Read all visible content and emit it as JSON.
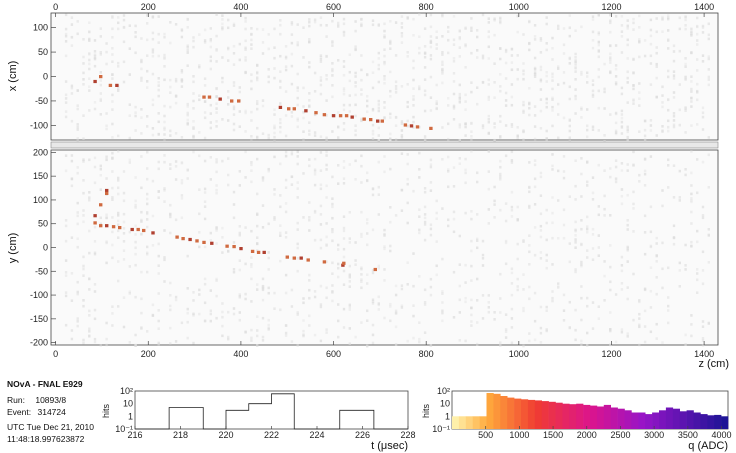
{
  "event_info": {
    "title": "NOvA - FNAL E929",
    "run_label": "Run:",
    "run_value": "10893/8",
    "event_label": "Event:",
    "event_value": "314724",
    "date": "UTC Tue Dec 21, 2010",
    "time": "11:48:18.997623872"
  },
  "colors": {
    "hit_gray": "#c8c8c8",
    "hit_dark": "#b04030",
    "hit_mid": "#d06a40",
    "frame": "#444444"
  },
  "chart_data": [
    {
      "type": "scatter",
      "name_key": "xz-view",
      "xlabel": "",
      "ylabel": "x (cm)",
      "xlim": [
        -10,
        1430
      ],
      "ylim": [
        -130,
        130
      ],
      "x_ticks_top": [
        "0",
        "200",
        "400",
        "600",
        "800",
        "1000",
        "1200",
        "1400"
      ],
      "y_ticks": [
        "100",
        "50",
        "0",
        "-50",
        "-100"
      ],
      "hits": [
        [
          85,
          -10
        ],
        [
          97,
          0
        ],
        [
          118,
          -18
        ],
        [
          132,
          -18
        ],
        [
          320,
          -42
        ],
        [
          332,
          -42
        ],
        [
          355,
          -46
        ],
        [
          380,
          -50
        ],
        [
          395,
          -50
        ],
        [
          485,
          -63
        ],
        [
          503,
          -66
        ],
        [
          515,
          -66
        ],
        [
          540,
          -70
        ],
        [
          562,
          -74
        ],
        [
          580,
          -78
        ],
        [
          600,
          -80
        ],
        [
          615,
          -80
        ],
        [
          628,
          -80
        ],
        [
          640,
          -83
        ],
        [
          666,
          -87
        ],
        [
          680,
          -88
        ],
        [
          695,
          -91
        ],
        [
          705,
          -91
        ],
        [
          755,
          -99
        ],
        [
          768,
          -101
        ],
        [
          781,
          -103
        ],
        [
          810,
          -106
        ]
      ]
    },
    {
      "type": "scatter",
      "name_key": "yz-view",
      "xlabel": "z (cm)",
      "ylabel": "y (cm)",
      "xlim": [
        -10,
        1430
      ],
      "ylim": [
        -205,
        205
      ],
      "x_ticks": [
        "0",
        "200",
        "400",
        "600",
        "800",
        "1000",
        "1200",
        "1400"
      ],
      "y_ticks": [
        "200",
        "150",
        "100",
        "50",
        "0",
        "-50",
        "-100",
        "-150",
        "-200"
      ],
      "hits": [
        [
          85,
          67
        ],
        [
          85,
          52
        ],
        [
          97,
          90
        ],
        [
          110,
          120
        ],
        [
          110,
          114
        ],
        [
          97,
          46
        ],
        [
          110,
          46
        ],
        [
          125,
          44
        ],
        [
          138,
          42
        ],
        [
          165,
          38
        ],
        [
          178,
          38
        ],
        [
          190,
          36
        ],
        [
          210,
          31
        ],
        [
          262,
          22
        ],
        [
          275,
          19
        ],
        [
          290,
          17
        ],
        [
          305,
          14
        ],
        [
          320,
          11
        ],
        [
          337,
          9
        ],
        [
          370,
          3
        ],
        [
          385,
          2
        ],
        [
          400,
          -2
        ],
        [
          425,
          -8
        ],
        [
          438,
          -10
        ],
        [
          450,
          -10
        ],
        [
          500,
          -20
        ],
        [
          515,
          -22
        ],
        [
          530,
          -22
        ],
        [
          545,
          -26
        ],
        [
          580,
          -30
        ],
        [
          620,
          -37
        ],
        [
          622,
          -33
        ],
        [
          690,
          -46
        ]
      ]
    },
    {
      "type": "bar",
      "name_key": "time-histogram",
      "ylabel": "hits",
      "xlabel": "t (μsec)",
      "xlim": [
        216,
        228
      ],
      "ylog": true,
      "y_ticks": [
        "10²",
        "10",
        "1",
        "10⁻¹"
      ],
      "x_ticks": [
        "216",
        "218",
        "220",
        "222",
        "224",
        "226",
        "228"
      ],
      "bins": [
        [
          216,
          217.5,
          0.1
        ],
        [
          217.5,
          219,
          5
        ],
        [
          219,
          220,
          0.1
        ],
        [
          220,
          221,
          3
        ],
        [
          221,
          222,
          10
        ],
        [
          222,
          223,
          60
        ],
        [
          223,
          225,
          0.1
        ],
        [
          225,
          226.5,
          3
        ],
        [
          226.5,
          228,
          0.1
        ]
      ]
    },
    {
      "type": "bar",
      "name_key": "charge-histogram",
      "ylabel": "hits",
      "xlabel": "q (ADC)",
      "xlim": [
        0,
        4096
      ],
      "ylog": true,
      "y_ticks": [
        "10²",
        "10",
        "1",
        "10⁻¹"
      ],
      "x_ticks": [
        "500",
        "1000",
        "1500",
        "2000",
        "2500",
        "3000",
        "3500",
        "4000"
      ],
      "values": [
        1,
        1,
        1,
        1,
        1,
        70,
        60,
        40,
        30,
        25,
        22,
        20,
        18,
        16,
        14,
        12,
        10,
        9,
        10,
        8,
        7,
        6,
        8,
        5,
        4,
        3,
        2,
        2,
        1.5,
        2,
        3,
        5,
        4,
        2.5,
        3,
        2,
        1.5,
        1.2,
        1.3,
        1
      ]
    }
  ]
}
